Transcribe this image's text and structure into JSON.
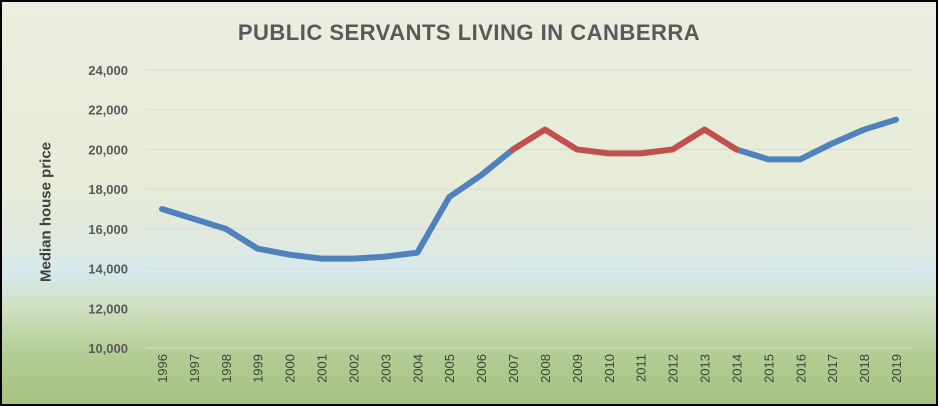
{
  "chart_data": {
    "type": "line",
    "title": "PUBLIC SERVANTS LIVING IN CANBERRA",
    "xlabel": "",
    "ylabel": "Median house price",
    "ylim": [
      10000,
      24000
    ],
    "y_ticks": [
      "10,000",
      "12,000",
      "14,000",
      "16,000",
      "18,000",
      "20,000",
      "22,000",
      "24,000"
    ],
    "y_tick_values": [
      10000,
      12000,
      14000,
      16000,
      18000,
      20000,
      22000,
      24000
    ],
    "categories": [
      "1996",
      "1997",
      "1998",
      "1999",
      "2000",
      "2001",
      "2002",
      "2003",
      "2004",
      "2005",
      "2006",
      "2007",
      "2008",
      "2009",
      "2010",
      "2011",
      "2012",
      "2013",
      "2014",
      "2015",
      "2016",
      "2017",
      "2018",
      "2019"
    ],
    "values": [
      17000,
      16500,
      16000,
      15000,
      14700,
      14500,
      14500,
      14600,
      14800,
      17600,
      18700,
      20000,
      21000,
      20000,
      19800,
      19800,
      20000,
      21000,
      20000,
      19500,
      19500,
      20300,
      21000,
      21500
    ],
    "highlight_range": [
      "2007",
      "2014"
    ],
    "grid": "horizontal",
    "colors": {
      "line": "#4f81bd",
      "highlight": "#c0504d",
      "grid": "#d9d9d9"
    }
  }
}
